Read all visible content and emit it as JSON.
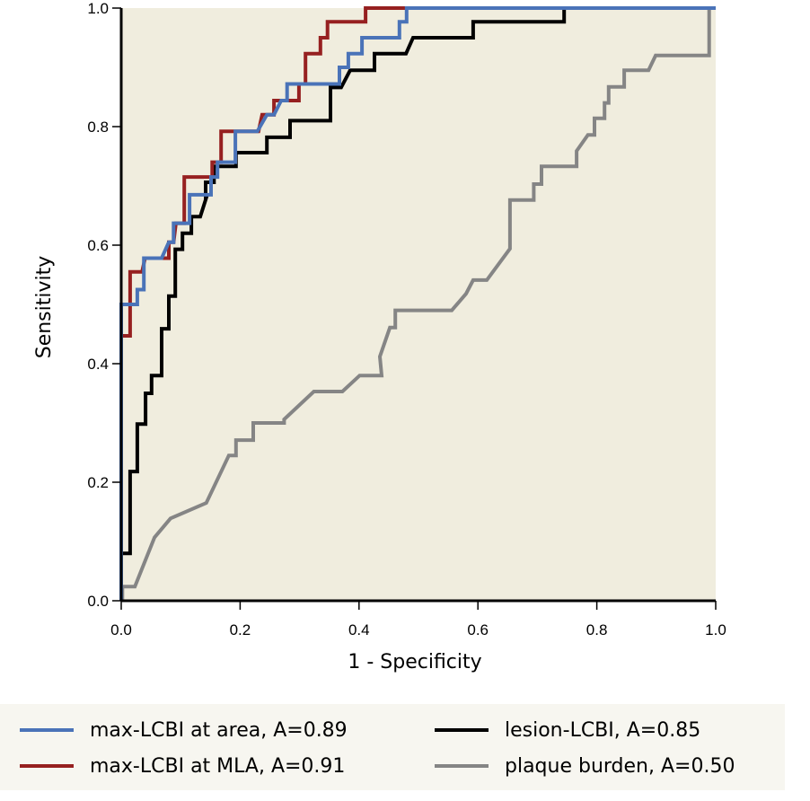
{
  "chart_data": {
    "type": "line",
    "subtype": "ROC step curves",
    "title": "",
    "xlabel": "1 - Specificity",
    "ylabel": "Sensitivity",
    "xlim": [
      0.0,
      1.0
    ],
    "ylim": [
      0.0,
      1.0
    ],
    "x_ticks": [
      "0.0",
      "0.2",
      "0.4",
      "0.6",
      "0.8",
      "1.0"
    ],
    "y_ticks": [
      "0.0",
      "0.2",
      "0.4",
      "0.6",
      "0.8",
      "1.0"
    ],
    "grid": false,
    "plot_background": "#f0edde",
    "legend_position": "bottom",
    "series": [
      {
        "name": "max-LCBI at area, A=0.89",
        "color": "#4a73b8",
        "points": [
          [
            0,
            0
          ],
          [
            0,
            0.5
          ],
          [
            0.027,
            0.5
          ],
          [
            0.027,
            0.525
          ],
          [
            0.038,
            0.525
          ],
          [
            0.038,
            0.578
          ],
          [
            0.068,
            0.578
          ],
          [
            0.08,
            0.605
          ],
          [
            0.088,
            0.605
          ],
          [
            0.088,
            0.637
          ],
          [
            0.115,
            0.637
          ],
          [
            0.115,
            0.685
          ],
          [
            0.151,
            0.685
          ],
          [
            0.151,
            0.715
          ],
          [
            0.162,
            0.715
          ],
          [
            0.162,
            0.74
          ],
          [
            0.192,
            0.74
          ],
          [
            0.192,
            0.792
          ],
          [
            0.219,
            0.792
          ],
          [
            0.229,
            0.792
          ],
          [
            0.245,
            0.82
          ],
          [
            0.257,
            0.82
          ],
          [
            0.269,
            0.844
          ],
          [
            0.279,
            0.844
          ],
          [
            0.279,
            0.872
          ],
          [
            0.367,
            0.872
          ],
          [
            0.367,
            0.9
          ],
          [
            0.382,
            0.9
          ],
          [
            0.382,
            0.923
          ],
          [
            0.405,
            0.923
          ],
          [
            0.405,
            0.95
          ],
          [
            0.468,
            0.95
          ],
          [
            0.468,
            0.977
          ],
          [
            0.48,
            0.977
          ],
          [
            0.48,
            1.0
          ],
          [
            1.0,
            1.0
          ]
        ]
      },
      {
        "name": "max-LCBI at MLA, A=0.91",
        "color": "#962020",
        "points": [
          [
            0,
            0
          ],
          [
            0,
            0.447
          ],
          [
            0.015,
            0.447
          ],
          [
            0.015,
            0.555
          ],
          [
            0.035,
            0.555
          ],
          [
            0.04,
            0.578
          ],
          [
            0.08,
            0.578
          ],
          [
            0.08,
            0.605
          ],
          [
            0.088,
            0.605
          ],
          [
            0.092,
            0.637
          ],
          [
            0.106,
            0.637
          ],
          [
            0.106,
            0.715
          ],
          [
            0.153,
            0.715
          ],
          [
            0.153,
            0.74
          ],
          [
            0.168,
            0.74
          ],
          [
            0.168,
            0.792
          ],
          [
            0.231,
            0.792
          ],
          [
            0.237,
            0.82
          ],
          [
            0.257,
            0.82
          ],
          [
            0.257,
            0.844
          ],
          [
            0.299,
            0.844
          ],
          [
            0.299,
            0.872
          ],
          [
            0.31,
            0.872
          ],
          [
            0.31,
            0.923
          ],
          [
            0.335,
            0.923
          ],
          [
            0.335,
            0.95
          ],
          [
            0.347,
            0.95
          ],
          [
            0.347,
            0.977
          ],
          [
            0.411,
            0.977
          ],
          [
            0.411,
            1.0
          ],
          [
            1.0,
            1.0
          ]
        ]
      },
      {
        "name": "lesion-LCBI, A=0.85",
        "color": "#000000",
        "points": [
          [
            0,
            0
          ],
          [
            0,
            0.08
          ],
          [
            0.015,
            0.08
          ],
          [
            0.015,
            0.218
          ],
          [
            0.027,
            0.218
          ],
          [
            0.027,
            0.298
          ],
          [
            0.041,
            0.298
          ],
          [
            0.041,
            0.35
          ],
          [
            0.051,
            0.35
          ],
          [
            0.051,
            0.38
          ],
          [
            0.068,
            0.38
          ],
          [
            0.068,
            0.459
          ],
          [
            0.08,
            0.459
          ],
          [
            0.08,
            0.514
          ],
          [
            0.091,
            0.514
          ],
          [
            0.091,
            0.593
          ],
          [
            0.103,
            0.593
          ],
          [
            0.103,
            0.62
          ],
          [
            0.118,
            0.62
          ],
          [
            0.118,
            0.648
          ],
          [
            0.133,
            0.648
          ],
          [
            0.143,
            0.68
          ],
          [
            0.142,
            0.68
          ],
          [
            0.142,
            0.706
          ],
          [
            0.156,
            0.706
          ],
          [
            0.156,
            0.733
          ],
          [
            0.193,
            0.733
          ],
          [
            0.193,
            0.756
          ],
          [
            0.245,
            0.756
          ],
          [
            0.245,
            0.757
          ],
          [
            0.245,
            0.782
          ],
          [
            0.284,
            0.782
          ],
          [
            0.284,
            0.81
          ],
          [
            0.352,
            0.81
          ],
          [
            0.352,
            0.866
          ],
          [
            0.37,
            0.866
          ],
          [
            0.385,
            0.895
          ],
          [
            0.426,
            0.895
          ],
          [
            0.426,
            0.923
          ],
          [
            0.479,
            0.923
          ],
          [
            0.491,
            0.95
          ],
          [
            0.592,
            0.95
          ],
          [
            0.592,
            0.977
          ],
          [
            0.745,
            0.977
          ],
          [
            0.745,
            1.0
          ],
          [
            1.0,
            1.0
          ]
        ]
      },
      {
        "name": "plaque burden, A=0.50",
        "color": "#858585",
        "points": [
          [
            0.002,
            0
          ],
          [
            0.002,
            0.024
          ],
          [
            0.023,
            0.024
          ],
          [
            0.056,
            0.107
          ],
          [
            0.083,
            0.139
          ],
          [
            0.143,
            0.165
          ],
          [
            0.181,
            0.245
          ],
          [
            0.193,
            0.245
          ],
          [
            0.193,
            0.271
          ],
          [
            0.222,
            0.271
          ],
          [
            0.222,
            0.3
          ],
          [
            0.274,
            0.3
          ],
          [
            0.274,
            0.306
          ],
          [
            0.324,
            0.353
          ],
          [
            0.372,
            0.353
          ],
          [
            0.401,
            0.38
          ],
          [
            0.438,
            0.38
          ],
          [
            0.435,
            0.412
          ],
          [
            0.452,
            0.461
          ],
          [
            0.461,
            0.461
          ],
          [
            0.461,
            0.49
          ],
          [
            0.556,
            0.49
          ],
          [
            0.58,
            0.518
          ],
          [
            0.592,
            0.541
          ],
          [
            0.615,
            0.541
          ],
          [
            0.654,
            0.594
          ],
          [
            0.654,
            0.676
          ],
          [
            0.694,
            0.676
          ],
          [
            0.694,
            0.703
          ],
          [
            0.707,
            0.703
          ],
          [
            0.707,
            0.733
          ],
          [
            0.766,
            0.733
          ],
          [
            0.766,
            0.759
          ],
          [
            0.785,
            0.786
          ],
          [
            0.796,
            0.786
          ],
          [
            0.796,
            0.814
          ],
          [
            0.813,
            0.814
          ],
          [
            0.813,
            0.84
          ],
          [
            0.82,
            0.84
          ],
          [
            0.82,
            0.867
          ],
          [
            0.846,
            0.867
          ],
          [
            0.846,
            0.895
          ],
          [
            0.887,
            0.895
          ],
          [
            0.899,
            0.92
          ],
          [
            0.989,
            0.92
          ],
          [
            0.989,
            1.0
          ],
          [
            1.0,
            1.0
          ]
        ]
      }
    ]
  },
  "legend": {
    "items": [
      {
        "label": "max-LCBI at area, A=0.89",
        "color": "#4a73b8"
      },
      {
        "label": "max-LCBI at MLA, A=0.91",
        "color": "#962020"
      },
      {
        "label": "lesion-LCBI, A=0.85",
        "color": "#000000"
      },
      {
        "label": "plaque burden, A=0.50",
        "color": "#858585"
      }
    ]
  }
}
